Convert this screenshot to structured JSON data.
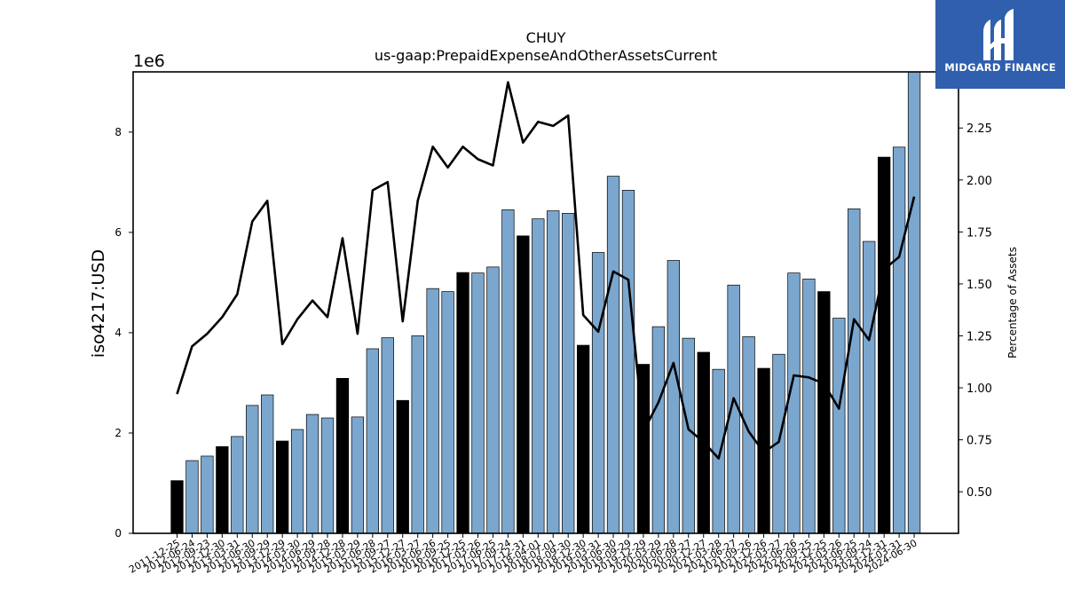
{
  "brand": {
    "name": "MIDGARD FINANCE",
    "icon": "midgard-logo-icon",
    "color": "#2f5fad"
  },
  "chart_data": {
    "type": "bar",
    "title": "CHUY",
    "subtitle": "us-gaap:PrepaidExpenseAndOtherAssetsCurrent",
    "ylabel": "iso4217:USD",
    "y2label": "Percentage of Assets",
    "y_offset_label": "1e6",
    "ylim": [
      0,
      9200000
    ],
    "y2lim": [
      0.3,
      2.52
    ],
    "yticks": [
      0,
      2,
      4,
      6,
      8
    ],
    "y2ticks": [
      "0.50",
      "0.75",
      "1.00",
      "1.25",
      "1.50",
      "1.75",
      "2.00",
      "2.25"
    ],
    "categories": [
      "2011-12-25",
      "2012-06-24",
      "2012-09-23",
      "2012-12-30",
      "2013-03-31",
      "2013-06-30",
      "2013-09-29",
      "2013-12-29",
      "2014-03-30",
      "2014-06-29",
      "2014-09-28",
      "2014-12-28",
      "2015-03-29",
      "2015-06-28",
      "2015-09-27",
      "2015-12-27",
      "2016-03-27",
      "2016-06-26",
      "2016-09-25",
      "2016-12-25",
      "2017-03-26",
      "2017-06-25",
      "2017-09-24",
      "2017-12-31",
      "2018-04-01",
      "2018-07-01",
      "2018-09-30",
      "2018-12-30",
      "2019-03-31",
      "2019-06-30",
      "2019-09-29",
      "2019-12-29",
      "2020-03-29",
      "2020-06-28",
      "2020-09-27",
      "2020-12-27",
      "2021-03-28",
      "2021-06-27",
      "2021-09-26",
      "2021-12-26",
      "2022-03-27",
      "2022-06-26",
      "2022-09-25",
      "2022-12-25",
      "2023-03-26",
      "2023-06-25",
      "2023-09-24",
      "2023-12-31",
      "2024-03-31",
      "2024-06-30"
    ],
    "series": [
      {
        "kind": "bar",
        "color": "#7ba7cf",
        "highlight_color": "#000000",
        "values": [
          1050000,
          1450000,
          1540000,
          1730000,
          1930000,
          2550000,
          2760000,
          1840000,
          2070000,
          2370000,
          2300000,
          3090000,
          2320000,
          3680000,
          3900000,
          2650000,
          3940000,
          4880000,
          4820000,
          5200000,
          5190000,
          5310000,
          6450000,
          5930000,
          6270000,
          6430000,
          6380000,
          3750000,
          5600000,
          7120000,
          6840000,
          3370000,
          4120000,
          5440000,
          3890000,
          3610000,
          3270000,
          4950000,
          3920000,
          3290000,
          3570000,
          5190000,
          5070000,
          4820000,
          4290000,
          6470000,
          5820000,
          7500000,
          7700000,
          9200000
        ],
        "highlighted": [
          true,
          false,
          false,
          true,
          false,
          false,
          false,
          true,
          false,
          false,
          false,
          true,
          false,
          false,
          false,
          true,
          false,
          false,
          false,
          true,
          false,
          false,
          false,
          true,
          false,
          false,
          false,
          true,
          false,
          false,
          false,
          true,
          false,
          false,
          false,
          true,
          false,
          false,
          false,
          true,
          false,
          false,
          false,
          true,
          false,
          false,
          false,
          true,
          false,
          false
        ]
      },
      {
        "kind": "line",
        "axis": "right",
        "color": "#000000",
        "values": [
          0.97,
          1.2,
          1.26,
          1.34,
          1.45,
          1.8,
          1.9,
          1.21,
          1.33,
          1.42,
          1.34,
          1.72,
          1.26,
          1.95,
          1.99,
          1.32,
          1.9,
          2.16,
          2.06,
          2.16,
          2.1,
          2.07,
          2.47,
          2.18,
          2.28,
          2.26,
          2.31,
          1.35,
          1.27,
          1.56,
          1.52,
          0.79,
          0.93,
          1.12,
          0.8,
          0.74,
          0.66,
          0.95,
          0.79,
          0.69,
          0.74,
          1.06,
          1.05,
          1.02,
          0.9,
          1.33,
          1.23,
          1.57,
          1.63,
          1.92
        ]
      }
    ]
  }
}
